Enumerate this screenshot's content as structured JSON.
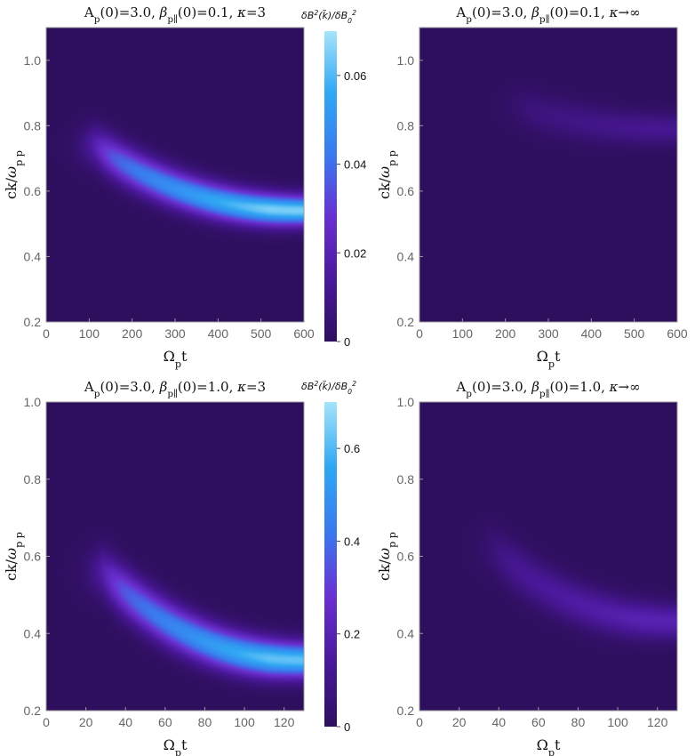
{
  "chart_data": [
    {
      "type": "heatmap",
      "title": "A_p(0)=3.0, β_p∥(0)=0.1, κ=3",
      "xlabel": "Ω_p t",
      "ylabel": "ck/ω_pp",
      "xlim": [
        0,
        600
      ],
      "ylim": [
        0.2,
        1.1
      ],
      "xticks": [
        0,
        100,
        200,
        300,
        400,
        500,
        600
      ],
      "yticks": [
        0.2,
        0.4,
        0.6,
        0.8,
        1.0
      ],
      "colorbar_range": [
        0,
        0.07
      ],
      "ridge": {
        "x_onset": 110,
        "k_at_onset": 0.74,
        "k_at_end": 0.54,
        "peak_value": 0.065
      }
    },
    {
      "type": "heatmap",
      "title": "A_p(0)=3.0, β_p∥(0)=0.1, κ→∞",
      "xlabel": "Ω_p t",
      "ylabel": "ck/ω_pp",
      "xlim": [
        0,
        600
      ],
      "ylim": [
        0.2,
        1.1
      ],
      "xticks": [
        0,
        100,
        200,
        300,
        400,
        500,
        600
      ],
      "yticks": [
        0.2,
        0.4,
        0.6,
        0.8,
        1.0
      ],
      "colorbar_range": [
        0,
        0.07
      ],
      "ridge": {
        "x_onset": 220,
        "k_at_onset": 0.86,
        "k_at_end": 0.79,
        "peak_value": 0.012
      }
    },
    {
      "type": "heatmap",
      "title": "A_p(0)=3.0, β_p∥(0)=1.0, κ=3",
      "xlabel": "Ω_p t",
      "ylabel": "ck/ω_pp",
      "xlim": [
        0,
        130
      ],
      "ylim": [
        0.2,
        1.0
      ],
      "xticks": [
        0,
        20,
        40,
        60,
        80,
        100,
        120
      ],
      "yticks": [
        0.2,
        0.4,
        0.6,
        0.8,
        1.0
      ],
      "colorbar_range": [
        0,
        0.7
      ],
      "ridge": {
        "x_onset": 28,
        "k_at_onset": 0.56,
        "k_at_end": 0.33,
        "peak_value": 0.62
      }
    },
    {
      "type": "heatmap",
      "title": "A_p(0)=3.0, β_p∥(0)=1.0, κ→∞",
      "xlabel": "Ω_p t",
      "ylabel": "ck/ω_pp",
      "xlim": [
        0,
        130
      ],
      "ylim": [
        0.2,
        1.0
      ],
      "xticks": [
        0,
        20,
        40,
        60,
        80,
        100,
        120
      ],
      "yticks": [
        0.2,
        0.4,
        0.6,
        0.8,
        1.0
      ],
      "colorbar_range": [
        0,
        0.7
      ],
      "ridge": {
        "x_onset": 36,
        "k_at_onset": 0.62,
        "k_at_end": 0.43,
        "peak_value": 0.2
      }
    }
  ],
  "colorbars": [
    {
      "title": "δB²(k̃)/δB₀²",
      "ticks": [
        0,
        0.02,
        0.04,
        0.06
      ],
      "range": [
        0,
        0.07
      ]
    },
    {
      "title": "δB²(k̃)/δB₀²",
      "ticks": [
        0,
        0.2,
        0.4,
        0.6
      ],
      "range": [
        0,
        0.7
      ]
    }
  ],
  "colors": {
    "background": "#2e0f5e",
    "stops": [
      "#2e0f5e",
      "#4a189a",
      "#6a2fd0",
      "#3a79ee",
      "#2fa7f3",
      "#a6e4fa"
    ]
  }
}
